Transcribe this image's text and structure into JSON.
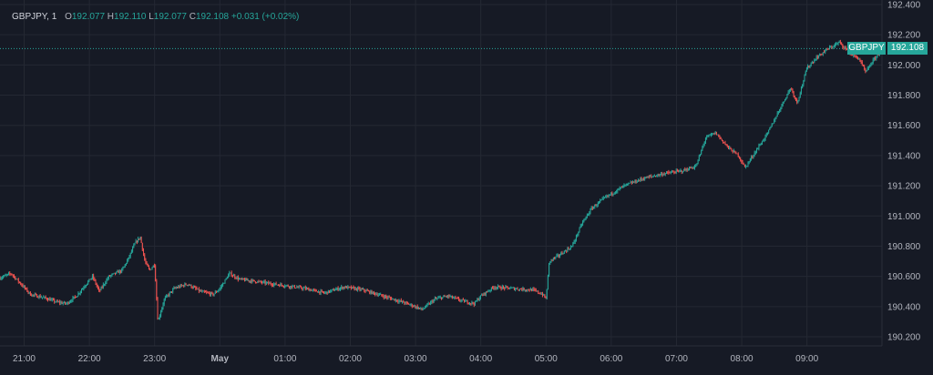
{
  "legend": {
    "symbol": "GBPJPY, 1",
    "open_label": "O",
    "open": "192.077",
    "high_label": "H",
    "high": "192.110",
    "low_label": "L",
    "low": "192.077",
    "close_label": "C",
    "close": "192.108",
    "change": "+0.031 (+0.02%)"
  },
  "price_tag": {
    "symbol": "GBPJPY",
    "value": "192.108"
  },
  "colors": {
    "up": "#26a69a",
    "down": "#ef5350",
    "grid": "#242833",
    "background": "#161a25",
    "text": "#b2b5be"
  },
  "chart_data": {
    "type": "candlestick",
    "symbol": "GBPJPY",
    "interval": "1",
    "last_price": 192.108,
    "ylim": [
      190.14,
      192.43
    ],
    "y_ticks": [
      190.2,
      190.4,
      190.6,
      190.8,
      191.0,
      191.2,
      191.4,
      191.6,
      191.8,
      192.0,
      192.2,
      192.4
    ],
    "y_tick_labels": [
      "190.200",
      "190.400",
      "190.600",
      "190.800",
      "191.000",
      "191.200",
      "191.400",
      "191.600",
      "191.800",
      "192.000",
      "192.200",
      "192.400"
    ],
    "x_ticks": [
      {
        "label": "21:00",
        "hours": 0
      },
      {
        "label": "22:00",
        "hours": 1
      },
      {
        "label": "23:00",
        "hours": 2
      },
      {
        "label": "May",
        "hours": 3
      },
      {
        "label": "01:00",
        "hours": 4
      },
      {
        "label": "02:00",
        "hours": 5
      },
      {
        "label": "03:00",
        "hours": 6
      },
      {
        "label": "04:00",
        "hours": 7
      },
      {
        "label": "05:00",
        "hours": 8
      },
      {
        "label": "06:00",
        "hours": 9
      },
      {
        "label": "07:00",
        "hours": 10
      },
      {
        "label": "08:00",
        "hours": 11
      },
      {
        "label": "09:00",
        "hours": 12
      }
    ],
    "x_range_hours": [
      -0.37,
      13.15
    ],
    "price_path": [
      [
        -0.37,
        190.59
      ],
      [
        -0.2,
        190.62
      ],
      [
        -0.05,
        190.55
      ],
      [
        0.1,
        190.48
      ],
      [
        0.3,
        190.46
      ],
      [
        0.5,
        190.43
      ],
      [
        0.65,
        190.42
      ],
      [
        0.8,
        190.47
      ],
      [
        0.95,
        190.55
      ],
      [
        1.05,
        190.6
      ],
      [
        1.15,
        190.5
      ],
      [
        1.3,
        190.6
      ],
      [
        1.5,
        190.64
      ],
      [
        1.6,
        190.72
      ],
      [
        1.7,
        190.82
      ],
      [
        1.78,
        190.86
      ],
      [
        1.85,
        190.7
      ],
      [
        1.92,
        190.64
      ],
      [
        2.0,
        190.68
      ],
      [
        2.05,
        190.3
      ],
      [
        2.15,
        190.45
      ],
      [
        2.3,
        190.52
      ],
      [
        2.5,
        190.55
      ],
      [
        2.7,
        190.5
      ],
      [
        2.9,
        190.48
      ],
      [
        3.0,
        190.52
      ],
      [
        3.15,
        190.62
      ],
      [
        3.3,
        190.58
      ],
      [
        3.5,
        190.57
      ],
      [
        3.8,
        190.55
      ],
      [
        4.0,
        190.54
      ],
      [
        4.3,
        190.52
      ],
      [
        4.6,
        190.49
      ],
      [
        4.9,
        190.53
      ],
      [
        5.2,
        190.51
      ],
      [
        5.5,
        190.47
      ],
      [
        5.8,
        190.43
      ],
      [
        6.0,
        190.4
      ],
      [
        6.1,
        190.38
      ],
      [
        6.3,
        190.45
      ],
      [
        6.5,
        190.47
      ],
      [
        6.7,
        190.44
      ],
      [
        6.9,
        190.42
      ],
      [
        7.0,
        190.47
      ],
      [
        7.2,
        190.53
      ],
      [
        7.5,
        190.52
      ],
      [
        7.8,
        190.51
      ],
      [
        7.95,
        190.48
      ],
      [
        8.0,
        190.45
      ],
      [
        8.05,
        190.7
      ],
      [
        8.2,
        190.74
      ],
      [
        8.4,
        190.8
      ],
      [
        8.55,
        190.95
      ],
      [
        8.7,
        191.05
      ],
      [
        8.9,
        191.12
      ],
      [
        9.2,
        191.2
      ],
      [
        9.5,
        191.25
      ],
      [
        9.8,
        191.28
      ],
      [
        10.1,
        191.3
      ],
      [
        10.3,
        191.33
      ],
      [
        10.45,
        191.52
      ],
      [
        10.6,
        191.55
      ],
      [
        10.8,
        191.45
      ],
      [
        10.95,
        191.4
      ],
      [
        11.05,
        191.32
      ],
      [
        11.2,
        191.42
      ],
      [
        11.4,
        191.55
      ],
      [
        11.55,
        191.68
      ],
      [
        11.75,
        191.85
      ],
      [
        11.85,
        191.75
      ],
      [
        12.0,
        191.98
      ],
      [
        12.15,
        192.05
      ],
      [
        12.3,
        192.1
      ],
      [
        12.5,
        192.15
      ],
      [
        12.65,
        192.08
      ],
      [
        12.8,
        192.04
      ],
      [
        12.9,
        191.95
      ],
      [
        13.0,
        192.02
      ],
      [
        13.15,
        192.108
      ]
    ]
  }
}
